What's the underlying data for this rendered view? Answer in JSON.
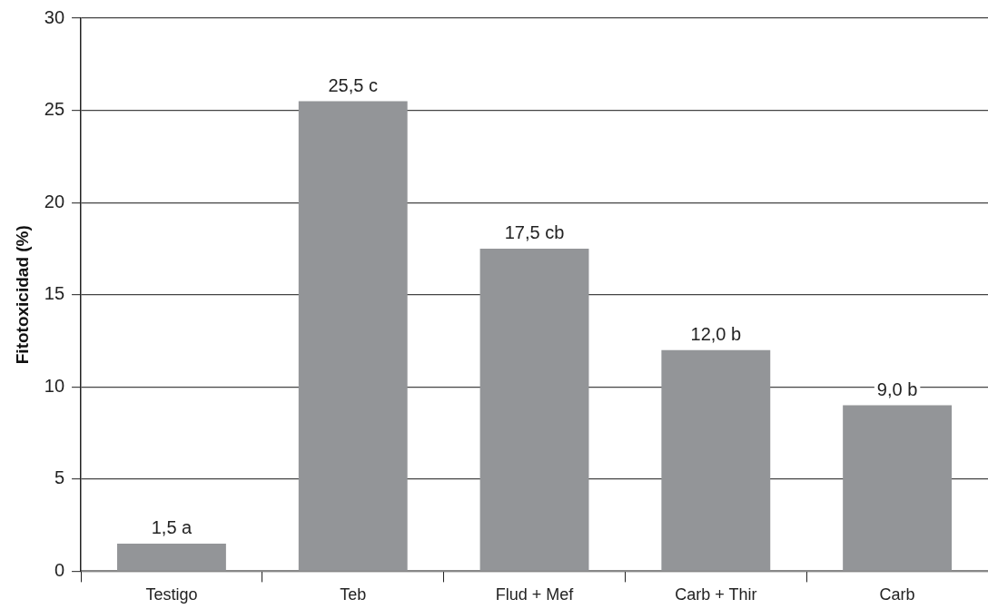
{
  "chart_data": {
    "type": "bar",
    "ylabel": "Fitotoxicidad (%)",
    "categories": [
      "Testigo",
      "Teb",
      "Flud + Mef",
      "Carb + Thir",
      "Carb"
    ],
    "values": [
      1.5,
      25.5,
      17.5,
      12.0,
      9.0
    ],
    "value_labels": [
      "1,5 a",
      "25,5 c",
      "17,5 cb",
      "12,0 b",
      "9,0 b"
    ],
    "color": "#939598",
    "ylim": [
      0,
      30
    ],
    "yticks": [
      0,
      5,
      10,
      15,
      20,
      25,
      30
    ],
    "grid": "y",
    "legend": false
  }
}
